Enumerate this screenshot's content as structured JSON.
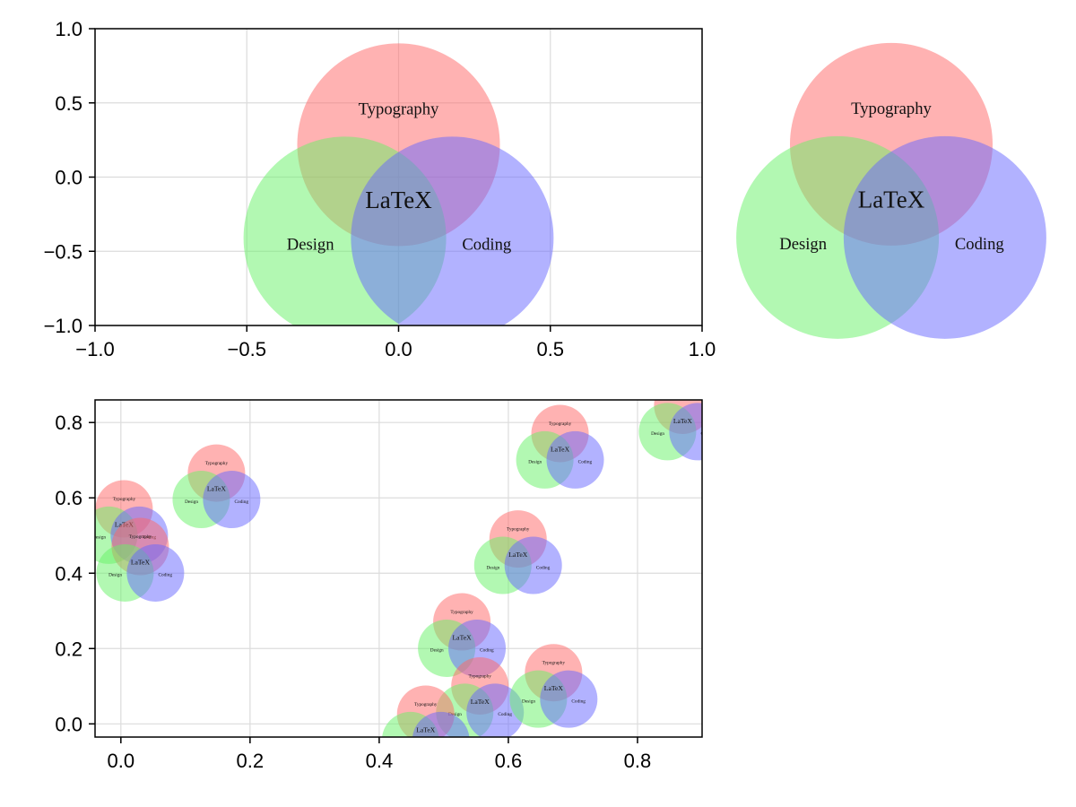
{
  "chart_data": [
    {
      "type": "scatter",
      "panel": "top-left",
      "glyph": "venn",
      "xlim": [
        -1.0,
        1.0
      ],
      "ylim": [
        -1.0,
        1.0
      ],
      "grid": true,
      "x_ticks": [
        -1.0,
        -0.5,
        0.0,
        0.5,
        1.0
      ],
      "x_tick_labels": [
        "−1.0",
        "−0.5",
        "0.0",
        "0.5",
        "1.0"
      ],
      "y_ticks": [
        -1.0,
        -0.5,
        0.0,
        0.5,
        1.0
      ],
      "y_tick_labels": [
        "−1.0",
        "−0.5",
        "0.0",
        "0.5",
        "1.0"
      ],
      "points": [
        {
          "x": 0.0,
          "y": 0.0,
          "scale": 1.0
        }
      ]
    },
    {
      "type": "scatter",
      "panel": "top-right",
      "glyph": "venn",
      "axes": false,
      "points": [
        {
          "x": 0.0,
          "y": 0.0,
          "scale": 1.0
        }
      ]
    },
    {
      "type": "scatter",
      "panel": "bottom",
      "glyph": "venn",
      "xlim": [
        -0.04,
        0.9
      ],
      "ylim": [
        -0.035,
        0.86
      ],
      "grid": true,
      "x_ticks": [
        0.0,
        0.2,
        0.4,
        0.6,
        0.8
      ],
      "x_tick_labels": [
        "0.0",
        "0.2",
        "0.4",
        "0.6",
        "0.8"
      ],
      "y_ticks": [
        0.0,
        0.2,
        0.4,
        0.6,
        0.8
      ],
      "y_tick_labels": [
        "0.0",
        "0.2",
        "0.4",
        "0.6",
        "0.8"
      ],
      "points": [
        {
          "x": 0.005,
          "y": 0.535
        },
        {
          "x": 0.03,
          "y": 0.435
        },
        {
          "x": 0.148,
          "y": 0.63
        },
        {
          "x": 0.528,
          "y": 0.235
        },
        {
          "x": 0.556,
          "y": 0.065
        },
        {
          "x": 0.472,
          "y": -0.01
        },
        {
          "x": 0.615,
          "y": 0.455
        },
        {
          "x": 0.67,
          "y": 0.1
        },
        {
          "x": 0.68,
          "y": 0.735
        },
        {
          "x": 0.87,
          "y": 0.81
        }
      ]
    }
  ],
  "venn": {
    "colors": {
      "top": "#ff6666",
      "left": "#66f266",
      "right": "#6666ff"
    },
    "opacity": 0.5,
    "labels": {
      "top": "Typography",
      "left": "Design",
      "right": "Coding",
      "center": "LaTeX"
    }
  }
}
